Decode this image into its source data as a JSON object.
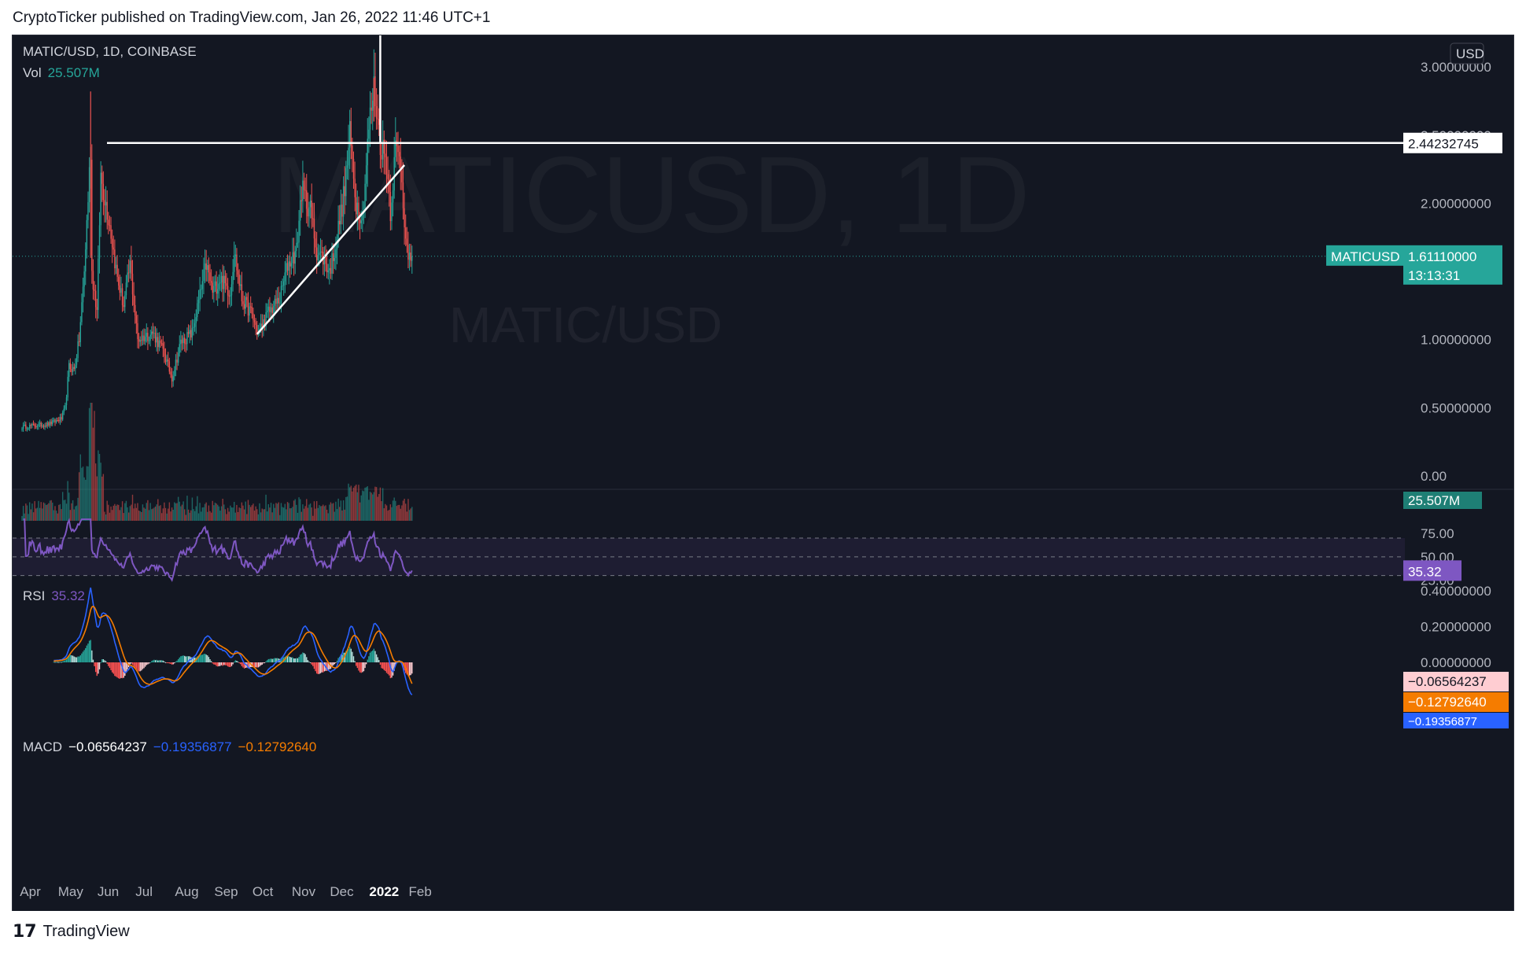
{
  "header": {
    "text": "CryptoTicker published on TradingView.com, Jan 26, 2022 11:46 UTC+1"
  },
  "footer": {
    "brand": "TradingView",
    "icon": "tradingview-logo-icon"
  },
  "colors": {
    "bg": "#131722",
    "up": "#26a69a",
    "down": "#ef5350",
    "rsi": "#7e57c2",
    "macd": "#2962ff",
    "signal": "#f57c00",
    "white": "#ffffff",
    "axis": "#b2b5be"
  },
  "legend": {
    "symbol": "MATIC/USD, 1D, COINBASE",
    "vol_label": "Vol",
    "vol_value": "25.507M",
    "rsi_label": "RSI",
    "rsi_value": "35.32",
    "macd_label": "MACD",
    "macd_hist": "−0.06564237",
    "macd_line": "−0.19356877",
    "macd_signal": "−0.12792640"
  },
  "watermark": {
    "main": "MATICUSD, 1D",
    "sub": "MATIC/USD"
  },
  "price_axis": {
    "currency": "USD",
    "ticks": [
      "3.00000000",
      "2.50000000",
      "2.00000000",
      "1.00000000",
      "0.50000000",
      "0.00"
    ],
    "hline_value": "2.44232745",
    "current_symbol": "MATICUSD",
    "current_price": "1.61110000",
    "countdown": "13:13:31",
    "volume_value": "25.507M"
  },
  "rsi_axis": {
    "ticks": [
      "75.00",
      "50.00",
      "25.00"
    ],
    "current": "35.32"
  },
  "macd_axis": {
    "ticks": [
      "0.40000000",
      "0.20000000",
      "0.00000000"
    ],
    "hist_value": "−0.06564237",
    "signal_value": "−0.12792640",
    "macd_value": "−0.19356877"
  },
  "time_axis": [
    "Apr",
    "May",
    "Jun",
    "Jul",
    "Aug",
    "Sep",
    "Oct",
    "Nov",
    "Dec",
    "2022",
    "Feb"
  ],
  "chart_data": [
    {
      "type": "candlestick",
      "title": "MATIC/USD, 1D, COINBASE",
      "x": [
        "2021-03-25",
        "2022-01-26"
      ],
      "anchors": [
        {
          "date": "2021-03-25",
          "close": 0.36
        },
        {
          "date": "2021-04-15",
          "close": 0.38
        },
        {
          "date": "2021-04-25",
          "close": 0.42
        },
        {
          "date": "2021-04-28",
          "close": 0.5
        },
        {
          "date": "2021-05-01",
          "close": 0.8
        },
        {
          "date": "2021-05-05",
          "close": 0.78
        },
        {
          "date": "2021-05-09",
          "close": 1.0
        },
        {
          "date": "2021-05-13",
          "close": 1.5
        },
        {
          "date": "2021-05-18",
          "close": 2.4
        },
        {
          "date": "2021-05-19",
          "close": 1.5
        },
        {
          "date": "2021-05-23",
          "close": 1.2
        },
        {
          "date": "2021-05-26",
          "close": 2.2
        },
        {
          "date": "2021-06-02",
          "close": 1.85
        },
        {
          "date": "2021-06-08",
          "close": 1.45
        },
        {
          "date": "2021-06-13",
          "close": 1.25
        },
        {
          "date": "2021-06-18",
          "close": 1.55
        },
        {
          "date": "2021-06-24",
          "close": 1.0
        },
        {
          "date": "2021-07-06",
          "close": 1.05
        },
        {
          "date": "2021-07-14",
          "close": 0.92
        },
        {
          "date": "2021-07-21",
          "close": 0.72
        },
        {
          "date": "2021-07-28",
          "close": 0.98
        },
        {
          "date": "2021-08-06",
          "close": 1.05
        },
        {
          "date": "2021-08-17",
          "close": 1.55
        },
        {
          "date": "2021-08-22",
          "close": 1.35
        },
        {
          "date": "2021-08-28",
          "close": 1.45
        },
        {
          "date": "2021-09-05",
          "close": 1.35
        },
        {
          "date": "2021-09-08",
          "close": 1.65
        },
        {
          "date": "2021-09-14",
          "close": 1.3
        },
        {
          "date": "2021-09-21",
          "close": 1.2
        },
        {
          "date": "2021-09-27",
          "close": 1.05
        },
        {
          "date": "2021-10-05",
          "close": 1.2
        },
        {
          "date": "2021-10-14",
          "close": 1.3
        },
        {
          "date": "2021-10-20",
          "close": 1.55
        },
        {
          "date": "2021-10-27",
          "close": 1.65
        },
        {
          "date": "2021-10-31",
          "close": 2.1
        },
        {
          "date": "2021-11-07",
          "close": 1.95
        },
        {
          "date": "2021-11-12",
          "close": 1.65
        },
        {
          "date": "2021-11-17",
          "close": 1.6
        },
        {
          "date": "2021-11-22",
          "close": 1.5
        },
        {
          "date": "2021-11-27",
          "close": 1.7
        },
        {
          "date": "2021-12-04",
          "close": 2.1
        },
        {
          "date": "2021-12-08",
          "close": 2.5
        },
        {
          "date": "2021-12-13",
          "close": 2.0
        },
        {
          "date": "2021-12-18",
          "close": 1.9
        },
        {
          "date": "2021-12-23",
          "close": 2.55
        },
        {
          "date": "2021-12-27",
          "close": 2.85
        },
        {
          "date": "2022-01-01",
          "close": 2.45
        },
        {
          "date": "2022-01-06",
          "close": 2.3
        },
        {
          "date": "2022-01-09",
          "close": 1.95
        },
        {
          "date": "2022-01-13",
          "close": 2.4
        },
        {
          "date": "2022-01-17",
          "close": 2.3
        },
        {
          "date": "2022-01-20",
          "close": 1.9
        },
        {
          "date": "2022-01-23",
          "close": 1.55
        },
        {
          "date": "2022-01-26",
          "close": 1.6111
        }
      ],
      "horizontal_line": 2.44232745,
      "trendline": [
        {
          "date": "2021-09-26",
          "price": 1.04
        },
        {
          "date": "2022-01-20",
          "price": 2.28
        }
      ],
      "vertical_line_date": "2022-01-01",
      "current_price": 1.6111,
      "ylim": [
        0.0,
        3.1
      ]
    },
    {
      "type": "bar",
      "title": "Vol",
      "last_value_m": 25.507
    },
    {
      "type": "line",
      "title": "RSI",
      "levels": [
        70,
        50,
        30
      ],
      "last_value": 35.32,
      "ylim": [
        20,
        85
      ]
    },
    {
      "type": "line",
      "title": "MACD",
      "series": [
        {
          "name": "MACD",
          "last_value": -0.19356877
        },
        {
          "name": "Signal",
          "last_value": -0.1279264
        },
        {
          "name": "Histogram",
          "last_value": -0.06564237
        }
      ],
      "ylim": [
        -0.3,
        0.45
      ]
    }
  ]
}
